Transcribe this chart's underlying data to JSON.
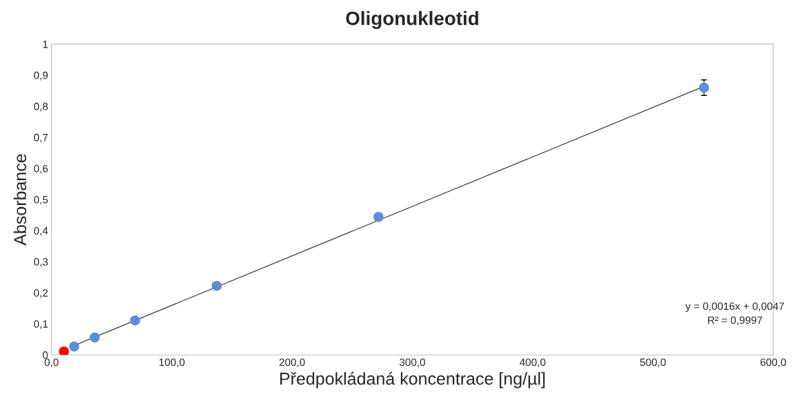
{
  "chart_data": {
    "type": "scatter",
    "title": "Oligonukleotid",
    "xlabel": "Předpokládaná koncentrace [ng/µl]",
    "ylabel": "Absorbance",
    "series": [
      {
        "marker": "circle",
        "color": "#5b8fd6",
        "x": [
          18.8,
          35.9,
          69.5,
          137.3,
          271.8,
          542.5
        ],
        "values": [
          0.027,
          0.056,
          0.111,
          0.222,
          0.444,
          0.86
        ],
        "errors": [
          null,
          null,
          null,
          null,
          null,
          0.025
        ]
      },
      {
        "marker": "circle",
        "color": "#ff0000",
        "x": [
          10.3
        ],
        "values": [
          0.011
        ]
      },
      {
        "type": "line",
        "marker": "none",
        "color": "#404040",
        "x": [
          18.8,
          542.5
        ],
        "values": [
          0.03,
          0.864
        ]
      }
    ],
    "xlim": [
      0,
      600
    ],
    "xticks": [
      {
        "value": 0,
        "label": "0,0"
      },
      {
        "value": 100,
        "label": "100,0"
      },
      {
        "value": 200,
        "label": "200,0"
      },
      {
        "value": 300,
        "label": "300,0"
      },
      {
        "value": 400,
        "label": "400,0"
      },
      {
        "value": 500,
        "label": "500,0"
      },
      {
        "value": 600,
        "label": "600,0"
      }
    ],
    "ylim": [
      0,
      1
    ],
    "yticks": [
      0,
      {
        "value": 0.1,
        "label": "0,1"
      },
      {
        "value": 0.2,
        "label": "0,2"
      },
      {
        "value": 0.3,
        "label": "0,3"
      },
      {
        "value": 0.4,
        "label": "0,4"
      },
      {
        "value": 0.5,
        "label": "0,5"
      },
      {
        "value": 0.6,
        "label": "0,6"
      },
      {
        "value": 0.7,
        "label": "0,7"
      },
      {
        "value": 0.8,
        "label": "0,8"
      },
      {
        "value": 0.9,
        "label": "0,9"
      },
      1
    ],
    "annotations": [
      "y = 0,0016x + 0,0047",
      "R² = 0,9997"
    ],
    "grid": false,
    "legend": false
  }
}
